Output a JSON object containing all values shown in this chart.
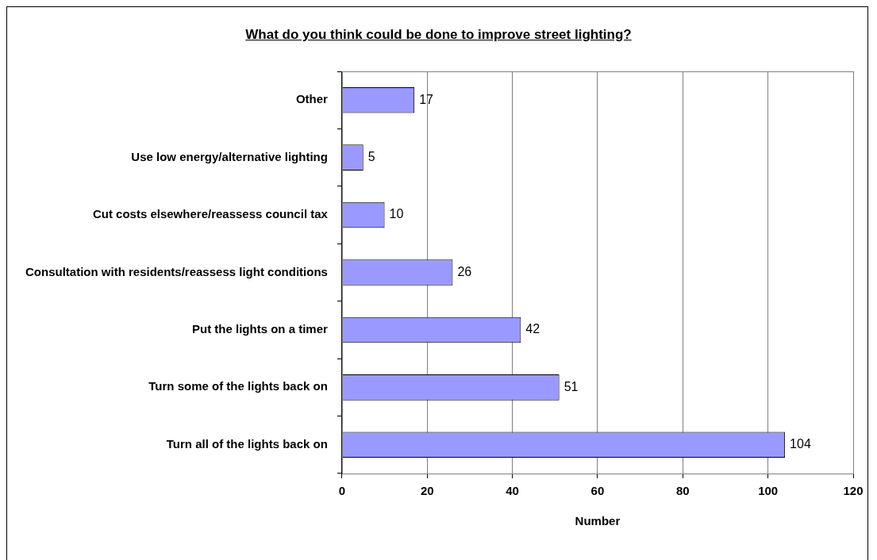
{
  "chart_data": {
    "type": "bar",
    "orientation": "horizontal",
    "title": "What do you think could be done to improve street lighting?",
    "xlabel": "Number",
    "categories": [
      "Other",
      "Use low energy/alternative lighting",
      "Cut costs elsewhere/reassess council tax",
      "Consultation with residents/reassess light conditions",
      "Put the lights on a timer",
      "Turn some of the lights back on",
      "Turn all of the lights back on"
    ],
    "values": [
      17,
      5,
      10,
      26,
      42,
      51,
      104
    ],
    "color": "#9999ff",
    "xlim": [
      0,
      120
    ],
    "xticks": [
      0,
      20,
      40,
      60,
      80,
      100,
      120
    ],
    "grid": "x",
    "data_labels": true
  }
}
